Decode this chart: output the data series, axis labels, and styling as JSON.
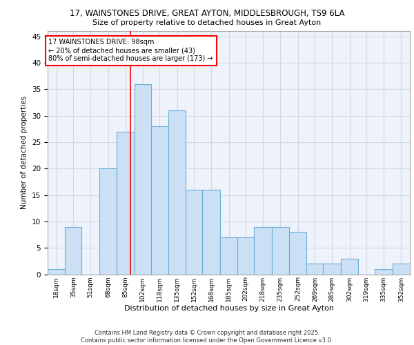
{
  "title_line1": "17, WAINSTONES DRIVE, GREAT AYTON, MIDDLESBROUGH, TS9 6LA",
  "title_line2": "Size of property relative to detached houses in Great Ayton",
  "xlabel": "Distribution of detached houses by size in Great Ayton",
  "ylabel": "Number of detached properties",
  "bin_labels": [
    "18sqm",
    "35sqm",
    "51sqm",
    "68sqm",
    "85sqm",
    "102sqm",
    "118sqm",
    "135sqm",
    "152sqm",
    "168sqm",
    "185sqm",
    "202sqm",
    "218sqm",
    "235sqm",
    "252sqm",
    "269sqm",
    "285sqm",
    "302sqm",
    "319sqm",
    "335sqm",
    "352sqm"
  ],
  "bar_vals": [
    1,
    9,
    0,
    20,
    27,
    36,
    28,
    31,
    16,
    16,
    7,
    7,
    9,
    9,
    8,
    2,
    2,
    3,
    0,
    1,
    2
  ],
  "bar_color": "#cce0f5",
  "bar_edge_color": "#6aaed6",
  "grid_color": "#d0d8e8",
  "background_color": "#eef2fa",
  "red_line_x": 98,
  "annotation_text": "17 WAINSTONES DRIVE: 98sqm\n← 20% of detached houses are smaller (43)\n80% of semi-detached houses are larger (173) →",
  "ylim": [
    0,
    46
  ],
  "yticks": [
    0,
    5,
    10,
    15,
    20,
    25,
    30,
    35,
    40,
    45
  ],
  "footer": "Contains HM Land Registry data © Crown copyright and database right 2025.\nContains public sector information licensed under the Open Government Licence v3.0.",
  "bin_edges": [
    18,
    35,
    51,
    68,
    85,
    102,
    118,
    135,
    152,
    168,
    185,
    202,
    218,
    235,
    252,
    269,
    285,
    302,
    319,
    335,
    352,
    369
  ]
}
